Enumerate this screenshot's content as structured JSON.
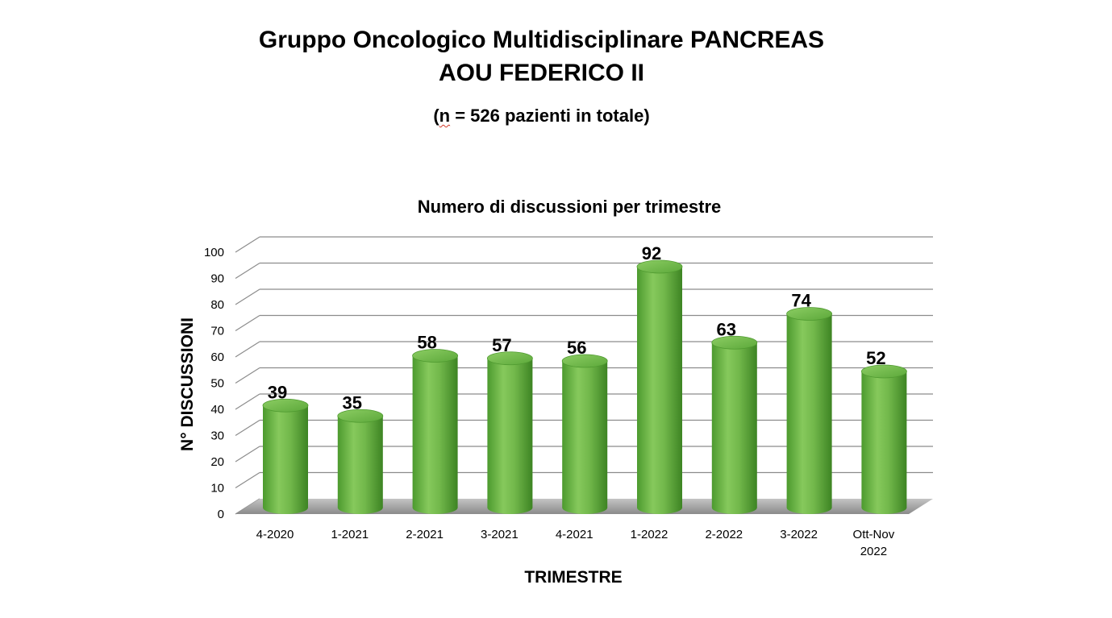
{
  "header": {
    "title_line1": "Gruppo Oncologico Multidisciplinare PANCREAS",
    "title_line2": "AOU FEDERICO II",
    "subtitle_prefix": "(",
    "subtitle_n": "n",
    "subtitle_rest": " = 526 pazienti in totale)"
  },
  "colors": {
    "bar_main": "#6fb548",
    "bar_light": "#9bd56f",
    "bar_dark": "#3f8a24",
    "grid": "#8c8c8c",
    "floor": "#9a9a9a"
  },
  "chart_data": {
    "type": "bar",
    "style": "3d-cylinder",
    "title": "Numero di discussioni per trimestre",
    "xlabel": "TRIMESTRE",
    "ylabel": "N° DISCUSSIONI",
    "ylim": [
      0,
      100
    ],
    "yticks": [
      0,
      10,
      20,
      30,
      40,
      50,
      60,
      70,
      80,
      90,
      100
    ],
    "grid": true,
    "legend": "none",
    "categories": [
      "4-2020",
      "1-2021",
      "2-2021",
      "3-2021",
      "4-2021",
      "1-2022",
      "2-2022",
      "3-2022",
      "Ott-Nov 2022"
    ],
    "category_lines": [
      [
        "4-2020"
      ],
      [
        "1-2021"
      ],
      [
        "2-2021"
      ],
      [
        "3-2021"
      ],
      [
        "4-2021"
      ],
      [
        "1-2022"
      ],
      [
        "2-2022"
      ],
      [
        "3-2022"
      ],
      [
        "Ott-Nov",
        "2022"
      ]
    ],
    "values": [
      39,
      35,
      58,
      57,
      56,
      92,
      63,
      74,
      52
    ],
    "data_labels": [
      "39",
      "35",
      "58",
      "57",
      "56",
      "92",
      "63",
      "74",
      "52"
    ]
  }
}
